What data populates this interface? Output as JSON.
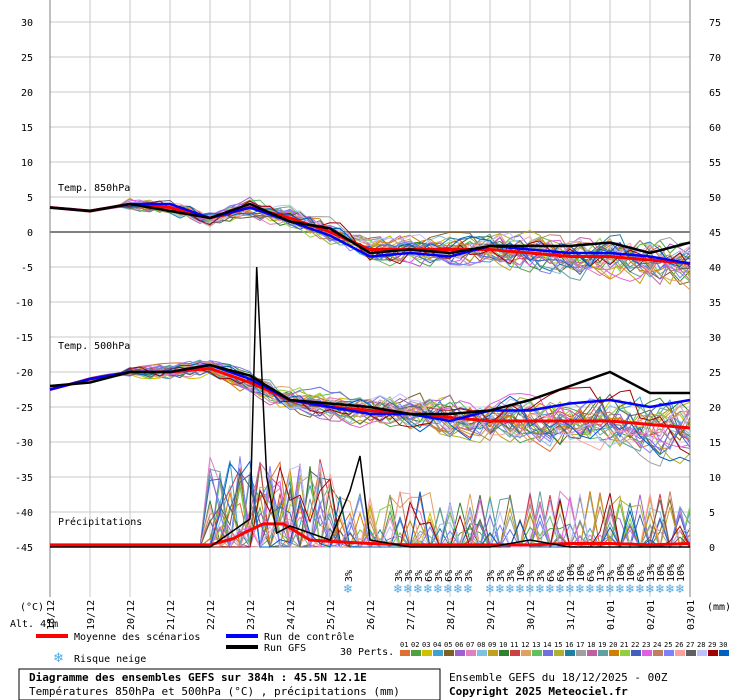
{
  "header": {
    "unit_left": "(°C)",
    "unit_right": "(mm)",
    "altitude": "Alt. 41m"
  },
  "legend": {
    "mean_label": "Moyenne des scénarios",
    "control_label": "Run de contrôle",
    "gfs_label": "Run GFS",
    "snow_label": "Risque neige",
    "perts_label": "30 Perts.",
    "perts_numbers": [
      "01",
      "02",
      "03",
      "04",
      "05",
      "06",
      "07",
      "08",
      "09",
      "10",
      "11",
      "12",
      "13",
      "14",
      "15",
      "16",
      "17",
      "18",
      "19",
      "20",
      "21",
      "22",
      "23",
      "24",
      "25",
      "26",
      "27",
      "28",
      "29",
      "30"
    ],
    "perts_colors": [
      "#e07030",
      "#50a040",
      "#d0c000",
      "#40a0d0",
      "#806020",
      "#a060d0",
      "#e080c0",
      "#80c0e0",
      "#c0a020",
      "#308030",
      "#d04040",
      "#e0a060",
      "#60c060",
      "#7070e0",
      "#b0b030",
      "#2080a0",
      "#a0a0a0",
      "#c060a0",
      "#60a0a0",
      "#d08000",
      "#90d040",
      "#4060c0",
      "#e060e0",
      "#c08060",
      "#8080ff",
      "#ffa0a0",
      "#606060",
      "#c0c0ff",
      "#a00000",
      "#0060c0"
    ],
    "colors": {
      "mean": "#ff0000",
      "control": "#0000ff",
      "gfs": "#000000",
      "snow": "#4aa8e8"
    }
  },
  "footer": {
    "title": "Diagramme des ensembles GEFS sur 384h : 45.5N 12.1E",
    "subtitle": "Températures 850hPa et 500hPa (°C) , précipitations (mm)",
    "run": "Ensemble GEFS du 18/12/2025 - 00Z",
    "copyright": "Copyright 2025 Meteociel.fr"
  },
  "chart_data": {
    "type": "line",
    "x_labels": [
      "18/12",
      "19/12",
      "20/12",
      "21/12",
      "22/12",
      "23/12",
      "24/12",
      "25/12",
      "26/12",
      "27/12",
      "28/12",
      "29/12",
      "30/12",
      "31/12",
      "01/01",
      "02/01",
      "03/01"
    ],
    "y_left_ticks": [
      30,
      25,
      20,
      15,
      10,
      5,
      0,
      -5,
      -10,
      -15,
      -20,
      -25,
      -30,
      -35,
      -40,
      -45
    ],
    "y_right_ticks": [
      75,
      70,
      65,
      60,
      55,
      50,
      45,
      40,
      35,
      30,
      25,
      20,
      15,
      10,
      5,
      0
    ],
    "annotations": [
      "Temp. 850hPa",
      "Temp. 500hPa",
      "Précipitations"
    ],
    "x_range_hours": [
      0,
      384
    ],
    "y_range": [
      -45,
      30
    ],
    "grid": true,
    "snow_risk_labels": [
      "3%",
      "3%",
      "3%",
      "3%",
      "6%",
      "3%",
      "6%",
      "3%",
      "3%",
      "3%",
      "3%",
      "3%",
      "10%",
      "3%",
      "3%",
      "6%",
      "6%",
      "10%",
      "10%",
      "6%",
      "13%",
      "3%",
      "10%",
      "10%",
      "6%",
      "13%",
      "10%",
      "10%",
      "10%"
    ],
    "series": [
      {
        "name": "Moyenne des scénarios",
        "group": "850hPa",
        "x": [
          0,
          24,
          48,
          72,
          96,
          120,
          144,
          168,
          192,
          216,
          240,
          264,
          288,
          312,
          336,
          360,
          384
        ],
        "y": [
          3.5,
          3,
          4,
          3.5,
          2,
          3.5,
          2,
          0,
          -2.5,
          -2.5,
          -2.5,
          -2.5,
          -3,
          -3.5,
          -3.5,
          -4,
          -4.5
        ]
      },
      {
        "name": "Run de contrôle",
        "group": "850hPa",
        "x": [
          0,
          24,
          48,
          72,
          96,
          120,
          144,
          168,
          192,
          216,
          240,
          264,
          288,
          312,
          336,
          360,
          384
        ],
        "y": [
          3.5,
          3,
          4,
          4,
          2,
          3.5,
          1.5,
          -0.5,
          -3.5,
          -3,
          -3.5,
          -2,
          -2.5,
          -3,
          -3,
          -3.5,
          -4.5
        ]
      },
      {
        "name": "Run GFS",
        "group": "850hPa",
        "x": [
          0,
          24,
          48,
          72,
          96,
          120,
          144,
          168,
          192,
          216,
          240,
          264,
          288,
          312,
          336,
          360,
          384
        ],
        "y": [
          3.5,
          3,
          4,
          3,
          2,
          4,
          1.5,
          0.5,
          -3,
          -2.5,
          -3,
          -2,
          -2,
          -2,
          -1.5,
          -3,
          -1.5
        ]
      },
      {
        "name": "Moyenne des scénarios",
        "group": "500hPa",
        "x": [
          0,
          24,
          48,
          72,
          96,
          120,
          144,
          168,
          192,
          216,
          240,
          264,
          288,
          312,
          336,
          360,
          384
        ],
        "y": [
          -22.5,
          -21,
          -20,
          -20,
          -19.5,
          -21.5,
          -24,
          -25,
          -25.5,
          -26,
          -26.5,
          -27,
          -27,
          -27,
          -27,
          -27.5,
          -28
        ]
      },
      {
        "name": "Run de contrôle",
        "group": "500hPa",
        "x": [
          0,
          24,
          48,
          72,
          96,
          120,
          144,
          168,
          192,
          216,
          240,
          264,
          288,
          312,
          336,
          360,
          384
        ],
        "y": [
          -22.5,
          -21,
          -20,
          -20,
          -19,
          -21,
          -24,
          -25,
          -26,
          -26,
          -27,
          -25.5,
          -25.5,
          -24.5,
          -24,
          -25,
          -24
        ]
      },
      {
        "name": "Run GFS",
        "group": "500hPa",
        "x": [
          0,
          24,
          48,
          72,
          96,
          120,
          144,
          168,
          192,
          216,
          240,
          264,
          288,
          312,
          336,
          360,
          384
        ],
        "y": [
          -22,
          -21.5,
          -20,
          -20,
          -19,
          -20.5,
          -24,
          -24.5,
          -25,
          -26,
          -26,
          -25.5,
          -24,
          -22,
          -20,
          -23,
          -23
        ]
      },
      {
        "name": "Moyenne des scénarios",
        "group": "precip_mm",
        "x": [
          0,
          24,
          48,
          72,
          96,
          110,
          118,
          128,
          140,
          156,
          168,
          192,
          216,
          240,
          264,
          288,
          312,
          336,
          360,
          384
        ],
        "y": [
          0.3,
          0.3,
          0.3,
          0.3,
          0.3,
          1.2,
          2.2,
          3.3,
          3.3,
          1,
          0.8,
          0.5,
          0.3,
          0.3,
          0.3,
          0.3,
          0.5,
          0.5,
          0.3,
          0.5
        ]
      },
      {
        "name": "Run GFS",
        "group": "precip_mm",
        "x": [
          0,
          24,
          48,
          72,
          96,
          120,
          124,
          130,
          136,
          144,
          168,
          180,
          186,
          192,
          216,
          240,
          264,
          288,
          312,
          336,
          360,
          384
        ],
        "y": [
          0,
          0,
          0,
          0,
          0,
          4,
          40,
          10,
          2,
          3,
          1,
          8,
          13,
          1,
          0,
          0,
          0,
          1,
          0,
          0,
          0,
          0
        ]
      }
    ]
  }
}
